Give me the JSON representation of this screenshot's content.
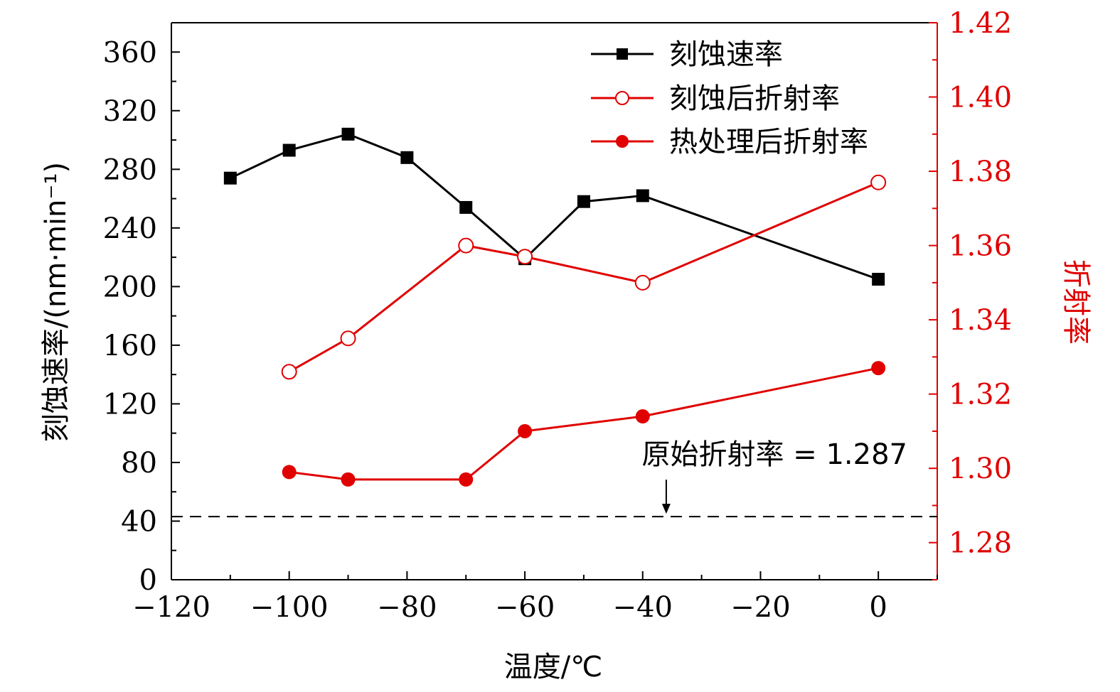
{
  "chart_data": {
    "type": "line",
    "xlabel": "温度/℃",
    "ylabel_left": "刻蚀速率/(nm·min⁻¹)",
    "ylabel_right": "折射率",
    "xlim": [
      -120,
      10
    ],
    "ylim_left": [
      0,
      380
    ],
    "ylim_right": [
      1.27,
      1.42
    ],
    "x_ticks": [
      -120,
      -100,
      -80,
      -60,
      -40,
      -20,
      0
    ],
    "x_tick_labels": [
      "−120",
      "−100",
      "−80",
      "−60",
      "−40",
      "−20",
      "0"
    ],
    "y_left_ticks": [
      0,
      40,
      80,
      120,
      160,
      200,
      240,
      280,
      320,
      360
    ],
    "y_left_tick_labels": [
      "0",
      "40",
      "80",
      "120",
      "160",
      "200",
      "240",
      "280",
      "320",
      "360"
    ],
    "y_right_ticks": [
      1.28,
      1.3,
      1.32,
      1.34,
      1.36,
      1.38,
      1.4,
      1.42
    ],
    "y_right_tick_labels": [
      "1.28",
      "1.30",
      "1.32",
      "1.34",
      "1.36",
      "1.38",
      "1.40",
      "1.42"
    ],
    "grid": false,
    "legend_position": "top-right",
    "series": [
      {
        "name": "刻蚀速率",
        "axis": "left",
        "color": "#000000",
        "marker": "filled-square",
        "x": [
          -110,
          -100,
          -90,
          -80,
          -70,
          -60,
          -50,
          -40,
          0
        ],
        "y": [
          274,
          293,
          304,
          288,
          254,
          219,
          258,
          262,
          205
        ]
      },
      {
        "name": "刻蚀后折射率",
        "axis": "right",
        "color": "#e00000",
        "marker": "open-circle",
        "x": [
          -100,
          -90,
          -70,
          -60,
          -40,
          0
        ],
        "y": [
          1.326,
          1.335,
          1.36,
          1.357,
          1.35,
          1.377
        ]
      },
      {
        "name": "热处理后折射率",
        "axis": "right",
        "color": "#e00000",
        "marker": "filled-circle",
        "x": [
          -100,
          -90,
          -70,
          -60,
          -40,
          0
        ],
        "y": [
          1.299,
          1.297,
          1.297,
          1.31,
          1.314,
          1.327
        ]
      }
    ],
    "reference_line": {
      "axis": "right",
      "y": 1.287,
      "style": "dashed",
      "color": "#000000",
      "label": "原始折射率 = 1.287",
      "arrow_x": -36
    }
  },
  "colors": {
    "axis_left": "#000000",
    "axis_right": "#e00000",
    "black_series": "#000000",
    "red_series": "#e00000"
  }
}
